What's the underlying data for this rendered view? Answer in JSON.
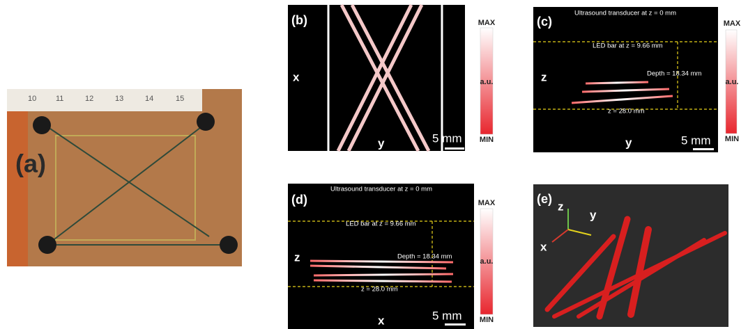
{
  "panel_a": {
    "label": "(a)",
    "ruler_labels": [
      "10",
      "11",
      "12",
      "13",
      "14",
      "15"
    ]
  },
  "panel_b": {
    "label": "(b)",
    "axis_vertical": "x",
    "axis_horizontal": "y",
    "scale_bar": "5 mm",
    "colorbar": {
      "max": "MAX",
      "unit": "a.u.",
      "min": "MIN"
    }
  },
  "panel_c": {
    "label": "(c)",
    "transducer": "Ultrasound transducer at z = 0 mm",
    "led_bar": "LED bar at z = 9.66 mm",
    "depth": "Depth = 18.34 mm",
    "bottom": "z = 28.0 mm",
    "axis_vertical": "z",
    "axis_horizontal": "y",
    "scale_bar": "5 mm",
    "colorbar": {
      "max": "MAX",
      "unit": "a.u.",
      "min": "MIN"
    }
  },
  "panel_d": {
    "label": "(d)",
    "transducer": "Ultrasound transducer at z = 0 mm",
    "led_bar": "LED bar at z = 9.66 mm",
    "depth": "Depth = 18.34 mm",
    "bottom": "z = 28.0 mm",
    "axis_vertical": "z",
    "axis_horizontal": "x",
    "scale_bar": "5 mm",
    "colorbar": {
      "max": "MAX",
      "unit": "a.u.",
      "min": "MIN"
    }
  },
  "panel_e": {
    "label": "(e)",
    "axes": [
      "z",
      "y",
      "x"
    ]
  }
}
